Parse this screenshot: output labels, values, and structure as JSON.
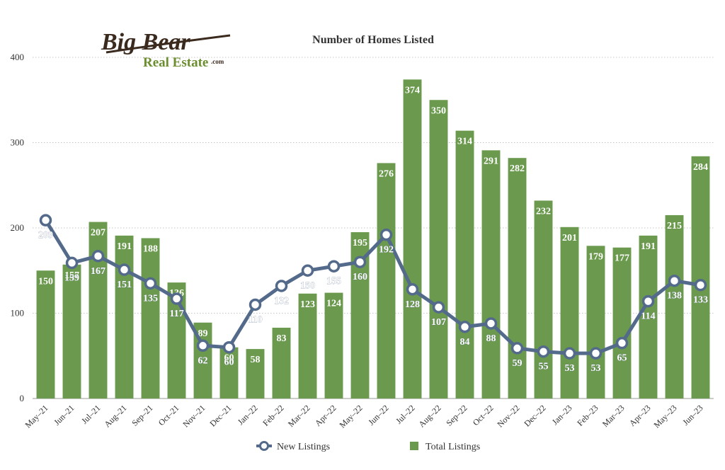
{
  "logo": {
    "line1": "Big Bear",
    "line2": "Real Estate",
    "suffix": ".com",
    "colors": {
      "script": "#3b2a1e",
      "green": "#6b8e2f"
    }
  },
  "chart_data": {
    "type": "bar",
    "title": "Number of Homes Listed",
    "categories": [
      "May–21",
      "Jun–21",
      "Jul–21",
      "Aug–21",
      "Sep–21",
      "Oct–21",
      "Nov–21",
      "Dec–21",
      "Jan–22",
      "Feb–22",
      "Mar–22",
      "Apr–22",
      "May–22",
      "Jun–22",
      "Jul–22",
      "Aug–22",
      "Sep–22",
      "Oct–22",
      "Nov–22",
      "Dec–22",
      "Jan–23",
      "Feb–23",
      "Mar–23",
      "Apr–23",
      "May–23",
      "Jun–23"
    ],
    "series": [
      {
        "name": "Total Listings",
        "type": "bar",
        "color": "#6b9a4e",
        "values": [
          150,
          157,
          207,
          191,
          188,
          136,
          89,
          60,
          58,
          83,
          123,
          124,
          195,
          276,
          374,
          350,
          314,
          291,
          282,
          232,
          201,
          179,
          177,
          191,
          215,
          284
        ]
      },
      {
        "name": "New Listings",
        "type": "line",
        "color": "#546a8b",
        "values": [
          209,
          159,
          167,
          151,
          135,
          117,
          62,
          60,
          110,
          132,
          150,
          155,
          160,
          192,
          128,
          107,
          84,
          88,
          59,
          55,
          53,
          53,
          65,
          114,
          138,
          133
        ]
      }
    ],
    "ylim": [
      0,
      400
    ],
    "yticks": [
      0,
      100,
      200,
      300,
      400
    ],
    "grid": true,
    "legend_position": "bottom"
  }
}
